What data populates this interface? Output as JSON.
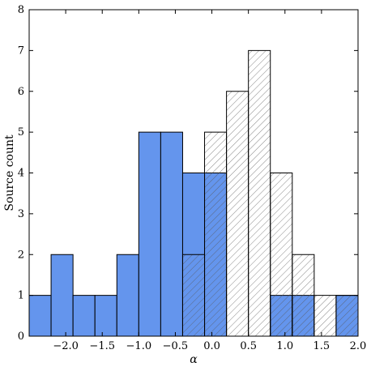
{
  "chart_data": {
    "type": "bar",
    "title": "",
    "xlabel": "α",
    "ylabel": "Source count",
    "xlim": [
      -2.5,
      2.0
    ],
    "ylim": [
      0,
      8
    ],
    "bin_width": 0.3,
    "x_ticks": [
      -2.0,
      -1.5,
      -1.0,
      -0.5,
      0.0,
      0.5,
      1.0,
      1.5,
      2.0
    ],
    "x_tick_labels": [
      "−2.0",
      "−1.5",
      "−1.0",
      "−0.5",
      "0.0",
      "0.5",
      "1.0",
      "1.5",
      "2.0"
    ],
    "y_ticks": [
      0,
      1,
      2,
      3,
      4,
      5,
      6,
      7,
      8
    ],
    "y_tick_labels": [
      "0",
      "1",
      "2",
      "3",
      "4",
      "5",
      "6",
      "7",
      "8"
    ],
    "grid": false,
    "series": [
      {
        "style": "solid",
        "color": "#6495ED",
        "bins": [
          {
            "x0": -2.5,
            "x1": -2.2,
            "count": 1
          },
          {
            "x0": -2.2,
            "x1": -1.9,
            "count": 2
          },
          {
            "x0": -1.9,
            "x1": -1.6,
            "count": 1
          },
          {
            "x0": -1.6,
            "x1": -1.3,
            "count": 1
          },
          {
            "x0": -1.3,
            "x1": -1.0,
            "count": 2
          },
          {
            "x0": -1.0,
            "x1": -0.7,
            "count": 5
          },
          {
            "x0": -0.7,
            "x1": -0.4,
            "count": 5
          },
          {
            "x0": -0.4,
            "x1": -0.1,
            "count": 4
          },
          {
            "x0": -0.1,
            "x1": 0.2,
            "count": 4
          },
          {
            "x0": 0.8,
            "x1": 1.1,
            "count": 1
          },
          {
            "x0": 1.1,
            "x1": 1.4,
            "count": 1
          },
          {
            "x0": 1.7,
            "x1": 2.0,
            "count": 1
          }
        ]
      },
      {
        "style": "hatched",
        "color": "#ffffff",
        "bins": [
          {
            "x0": -0.4,
            "x1": -0.1,
            "count": 2
          },
          {
            "x0": -0.1,
            "x1": 0.2,
            "count": 5
          },
          {
            "x0": 0.2,
            "x1": 0.5,
            "count": 6
          },
          {
            "x0": 0.5,
            "x1": 0.8,
            "count": 7
          },
          {
            "x0": 0.8,
            "x1": 1.1,
            "count": 4
          },
          {
            "x0": 1.1,
            "x1": 1.4,
            "count": 2
          },
          {
            "x0": 1.4,
            "x1": 1.7,
            "count": 1
          },
          {
            "x0": 1.7,
            "x1": 2.0,
            "count": 1
          }
        ]
      }
    ]
  }
}
